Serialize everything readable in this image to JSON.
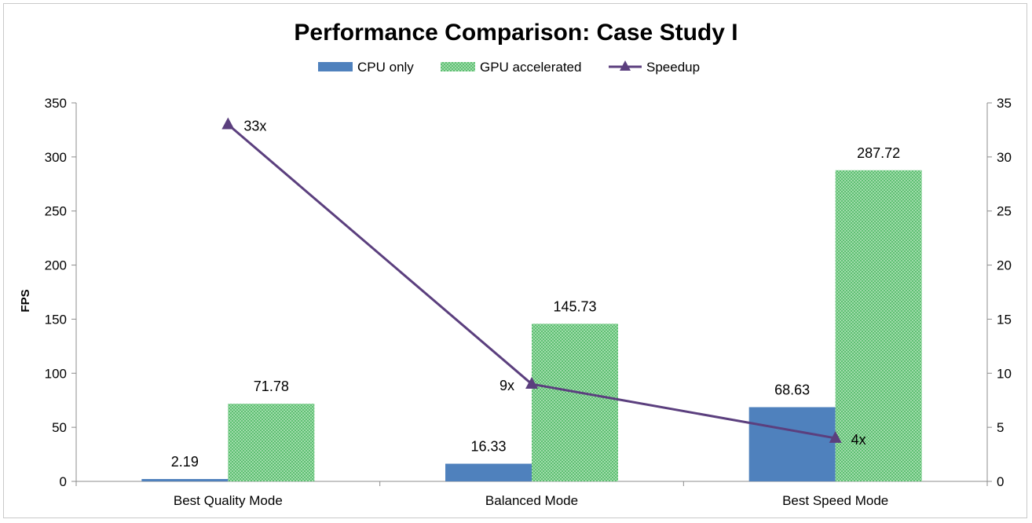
{
  "chart_data": {
    "type": "bar",
    "title": "Performance Comparison: Case Study I",
    "ylabel": "FPS",
    "y2label": "",
    "xlabel": "",
    "categories": [
      "Best Quality Mode",
      "Balanced Mode",
      "Best Speed Mode"
    ],
    "ylim": [
      0,
      350
    ],
    "yticks": [
      "0",
      "50",
      "100",
      "150",
      "200",
      "250",
      "300",
      "350"
    ],
    "y2lim": [
      0,
      35
    ],
    "y2ticks": [
      "0",
      "5",
      "10",
      "15",
      "20",
      "25",
      "30",
      "35"
    ],
    "legend_position": "top",
    "grid": false,
    "series": [
      {
        "name": "CPU only",
        "kind": "bar",
        "axis": "left",
        "color": "#4f81bd",
        "values": [
          2.19,
          16.33,
          68.63
        ],
        "labels": [
          "2.19",
          "16.33",
          "68.63"
        ]
      },
      {
        "name": "GPU accelerated",
        "kind": "bar",
        "axis": "left",
        "color": "#7fca8f",
        "pattern": "dotted-green",
        "values": [
          71.78,
          145.73,
          287.72
        ],
        "labels": [
          "71.78",
          "145.73",
          "287.72"
        ]
      },
      {
        "name": "Speedup",
        "kind": "line",
        "axis": "right",
        "color": "#5b3f7e",
        "marker": "triangle",
        "values": [
          33,
          9,
          4
        ],
        "labels": [
          "33x",
          "9x",
          "4x"
        ]
      }
    ]
  }
}
